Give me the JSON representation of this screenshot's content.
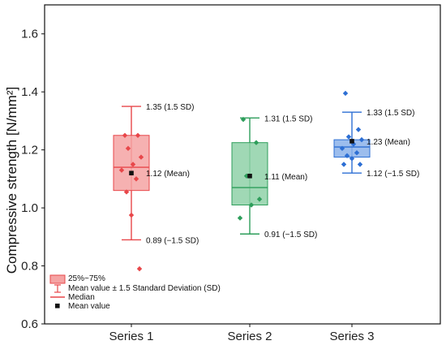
{
  "chart_data": {
    "type": "box",
    "ylabel": "Compressive strength [N/mm²]",
    "ylim": [
      0.6,
      1.7
    ],
    "yticks": [
      "0.6",
      "0.8",
      "1.0",
      "1.2",
      "1.4",
      "1.6"
    ],
    "ytick_values": [
      0.6,
      0.8,
      1.0,
      1.2,
      1.4,
      1.6
    ],
    "categories": [
      "Series 1",
      "Series 2",
      "Series 3"
    ],
    "series": [
      {
        "color": "#e8474a",
        "fill": "#f5a3a3",
        "q1": 1.06,
        "q3": 1.25,
        "median": 1.14,
        "mean": 1.12,
        "whisker_low": 0.89,
        "whisker_high": 1.35,
        "points": [
          1.25,
          1.25,
          1.205,
          1.175,
          1.15,
          1.13,
          1.1,
          1.055,
          0.975,
          0.79
        ],
        "labels": {
          "high": "1.35 (1.5 SD)",
          "mean": "1.12 (Mean)",
          "low": "0.89 (−1.5 SD)"
        }
      },
      {
        "color": "#2e9e5b",
        "fill": "#8fd1a8",
        "q1": 1.01,
        "q3": 1.225,
        "median": 1.07,
        "mean": 1.11,
        "whisker_low": 0.91,
        "whisker_high": 1.31,
        "points": [
          1.305,
          1.225,
          1.11,
          1.03,
          1.01,
          0.965
        ],
        "labels": {
          "high": "1.31 (1.5 SD)",
          "mean": "1.11 (Mean)",
          "low": "0.91 (−1.5 SD)"
        }
      },
      {
        "color": "#2d6fd4",
        "fill": "#8bb2ea",
        "q1": 1.175,
        "q3": 1.235,
        "median": 1.21,
        "mean": 1.23,
        "whisker_low": 1.12,
        "whisker_high": 1.33,
        "points": [
          1.395,
          1.27,
          1.245,
          1.235,
          1.22,
          1.205,
          1.19,
          1.18,
          1.17,
          1.15,
          1.15
        ],
        "labels": {
          "high": "1.33 (1.5 SD)",
          "mean": "1.23 (Mean)",
          "low": "1.12 (−1.5 SD)"
        }
      }
    ],
    "legend": {
      "placement": "bottom-left",
      "items": [
        "25%~75%",
        "Mean value ± 1.5 Standard Deviation (SD)",
        "Median",
        "Mean value"
      ]
    }
  }
}
